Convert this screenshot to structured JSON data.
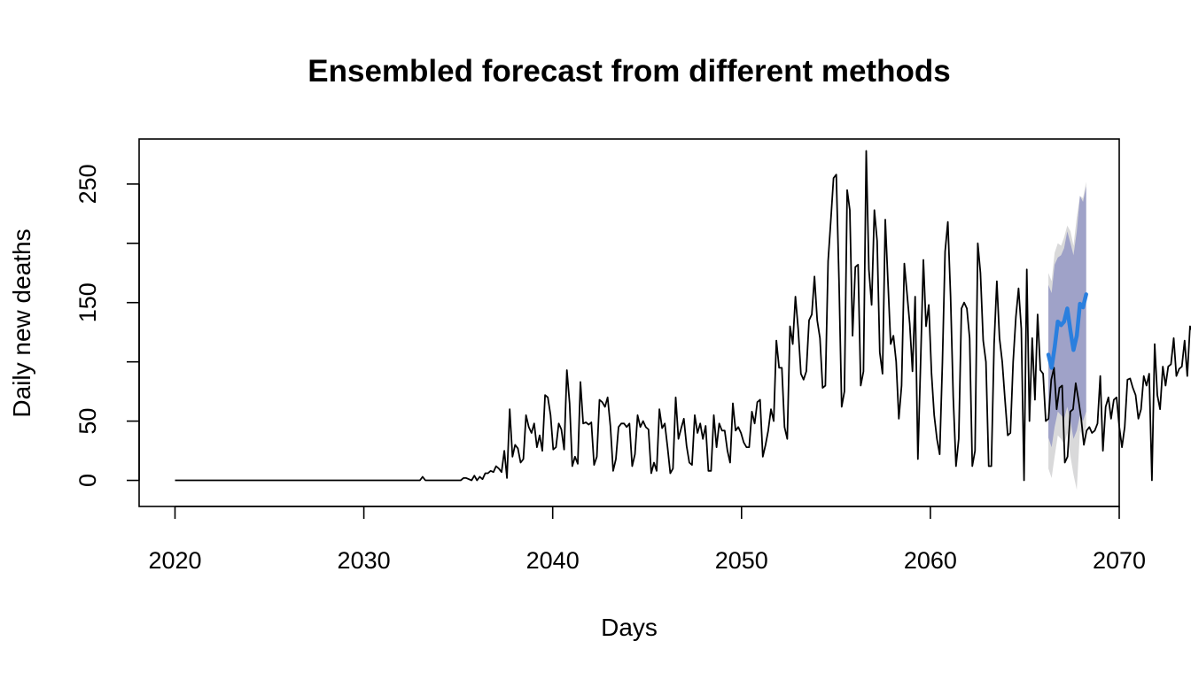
{
  "chart_data": {
    "type": "line",
    "title": "Ensembled forecast from different methods",
    "xlabel": "Days",
    "ylabel": "Daily new deaths",
    "xlim": [
      2018.1,
      2070.0
    ],
    "ylim": [
      -22,
      288
    ],
    "x_ticks": [
      2020,
      2030,
      2040,
      2050,
      2060,
      2070
    ],
    "y_ticks": [
      0,
      50,
      100,
      150,
      200,
      250
    ],
    "y_tick_labels": [
      "0",
      "50",
      "",
      "150",
      "",
      "250"
    ],
    "grid": false,
    "legend": "none",
    "colors": {
      "observed": "#000000",
      "forecast_mean": "#2a7fde",
      "interval_80": "#9fa2c8",
      "interval_95": "#d9d9da"
    },
    "series": [
      {
        "role": "observed",
        "x_start": 2020.0,
        "x_step": 0.1441,
        "values": [
          0,
          0,
          0,
          0,
          0,
          0,
          0,
          0,
          0,
          0,
          0,
          0,
          0,
          0,
          0,
          0,
          0,
          0,
          0,
          0,
          0,
          0,
          0,
          0,
          0,
          0,
          0,
          0,
          0,
          0,
          0,
          0,
          0,
          0,
          0,
          0,
          0,
          0,
          0,
          0,
          0,
          0,
          0,
          0,
          0,
          0,
          0,
          0,
          0,
          0,
          0,
          0,
          0,
          0,
          0,
          0,
          0,
          0,
          0,
          0,
          0,
          0,
          0,
          0,
          0,
          0,
          0,
          0,
          0,
          0,
          0,
          0,
          0,
          0,
          0,
          0,
          0,
          0,
          0,
          0,
          0,
          0,
          0,
          0,
          0,
          0,
          0,
          0,
          0,
          0,
          0,
          3,
          0,
          0,
          0,
          0,
          0,
          0,
          0,
          0,
          0,
          0,
          0,
          0,
          0,
          0,
          2,
          2,
          1,
          0,
          4,
          0,
          3,
          1,
          6,
          6,
          8,
          7,
          12,
          10,
          7,
          25,
          2,
          60,
          20,
          30,
          27,
          15,
          18,
          55,
          45,
          40,
          48,
          28,
          38,
          25,
          72,
          70,
          55,
          26,
          28,
          48,
          43,
          26,
          93,
          65,
          12,
          20,
          14,
          83,
          48,
          49,
          47,
          49,
          13,
          20,
          68,
          66,
          62,
          70,
          46,
          8,
          18,
          45,
          48,
          48,
          45,
          48,
          12,
          22,
          55,
          45,
          50,
          45,
          43,
          6,
          15,
          8,
          60,
          44,
          48,
          28,
          6,
          10,
          70,
          35,
          44,
          52,
          29,
          15,
          13,
          55,
          40,
          48,
          35,
          46,
          8,
          8,
          55,
          28,
          48,
          42,
          42,
          25,
          15,
          65,
          42,
          45,
          40,
          32,
          28,
          28,
          58,
          48,
          66,
          68,
          20,
          30,
          42,
          60,
          50,
          118,
          95,
          95,
          45,
          35,
          130,
          115,
          155,
          128,
          90,
          85,
          92,
          135,
          140,
          172,
          135,
          120,
          78,
          80,
          185,
          220,
          255,
          258,
          168,
          62,
          75,
          245,
          228,
          122,
          180,
          182,
          80,
          92,
          278,
          178,
          148,
          228,
          202,
          108,
          90,
          220,
          168,
          115,
          122,
          100,
          52,
          80,
          183,
          158,
          132,
          92,
          155,
          18,
          100,
          186,
          130,
          148,
          90,
          55,
          35,
          22,
          100,
          193,
          218,
          155,
          70,
          12,
          35,
          145,
          150,
          145,
          120,
          12,
          25,
          200,
          175,
          118,
          100,
          12,
          12,
          115,
          168,
          120,
          100,
          68,
          38,
          40,
          100,
          138,
          162,
          128,
          0,
          178,
          50,
          120,
          68,
          140,
          93,
          90,
          50,
          52,
          85,
          95,
          60,
          78,
          80,
          15,
          20,
          58,
          60,
          82,
          68,
          52,
          30,
          42,
          45,
          40,
          42,
          48,
          88,
          25,
          62,
          70,
          52,
          68,
          70,
          45,
          28,
          45,
          85,
          86,
          78,
          72,
          52,
          60,
          88,
          80,
          90,
          0,
          115,
          72,
          60,
          96,
          80,
          96,
          98,
          120,
          88,
          94,
          96,
          118,
          88,
          130,
          125
        ]
      },
      {
        "role": "forecast",
        "x": [
          2066.25,
          2066.42,
          2066.58,
          2066.75,
          2066.92,
          2067.08,
          2067.25,
          2067.42,
          2067.58,
          2067.75,
          2067.92,
          2068.08,
          2068.25
        ],
        "mean": [
          106,
          95,
          112,
          134,
          131,
          134,
          145,
          126,
          110,
          122,
          149,
          146,
          157
        ],
        "lo80": [
          36,
          28,
          45,
          58,
          55,
          52,
          62,
          50,
          35,
          42,
          55,
          50,
          58
        ],
        "hi80": [
          165,
          158,
          182,
          188,
          190,
          196,
          210,
          200,
          190,
          210,
          240,
          235,
          248
        ],
        "lo95": [
          10,
          2,
          20,
          38,
          35,
          30,
          40,
          20,
          5,
          -8,
          42,
          35,
          45
        ],
        "hi95": [
          175,
          168,
          192,
          200,
          198,
          205,
          215,
          210,
          198,
          222,
          240,
          238,
          252
        ]
      }
    ]
  }
}
